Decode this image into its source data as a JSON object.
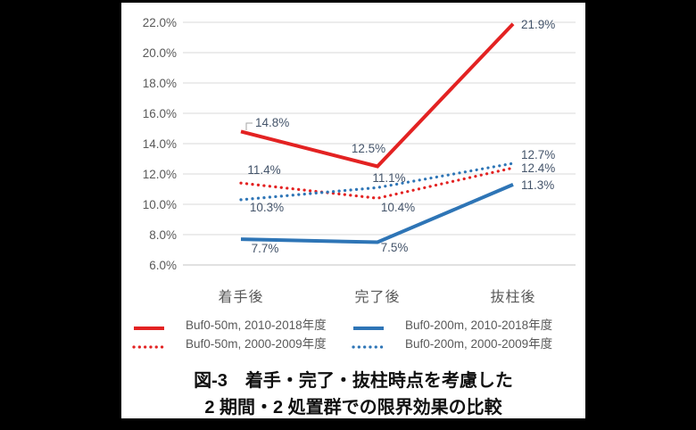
{
  "figure": {
    "caption_line1": "図-3　着手・完了・抜柱時点を考慮した",
    "caption_line2": "2 期間・2 処置群での限界効果の比較"
  },
  "chart_data": {
    "type": "line",
    "categories": [
      "着手後",
      "完了後",
      "抜柱後"
    ],
    "series": [
      {
        "name": "Buf0-50m, 2010-2018年度",
        "color": "#e32222",
        "style": "solid",
        "values": [
          14.8,
          12.5,
          21.9
        ],
        "labels": [
          "14.8%",
          "12.5%",
          "21.9%"
        ]
      },
      {
        "name": "Buf0-50m, 2000-2009年度",
        "color": "#e32222",
        "style": "dotted",
        "values": [
          11.4,
          10.4,
          12.4
        ],
        "labels": [
          "11.4%",
          "10.4%",
          "12.4%"
        ]
      },
      {
        "name": "Buf0-200m, 2010-2018年度",
        "color": "#2e75b6",
        "style": "solid",
        "values": [
          7.7,
          7.5,
          11.3
        ],
        "labels": [
          "7.7%",
          "7.5%",
          "11.3%"
        ]
      },
      {
        "name": "Buf0-200m, 2000-2009年度",
        "color": "#2e75b6",
        "style": "dotted",
        "values": [
          10.3,
          11.1,
          12.7
        ],
        "labels": [
          "10.3%",
          "11.1%",
          "12.7%"
        ]
      }
    ],
    "y_axis": {
      "min": 6.0,
      "max": 22.0,
      "step": 2.0,
      "tick_labels": [
        "6.0%",
        "8.0%",
        "10.0%",
        "12.0%",
        "14.0%",
        "16.0%",
        "18.0%",
        "20.0%",
        "22.0%"
      ]
    },
    "grid": true,
    "legend_position": "bottom",
    "legend_order_rows": [
      [
        "Buf0-50m, 2010-2018年度",
        "Buf0-200m, 2010-2018年度"
      ],
      [
        "Buf0-50m, 2000-2009年度",
        "Buf0-200m, 2000-2009年度"
      ]
    ]
  },
  "colors": {
    "red_series": "#e32222",
    "blue_series": "#2e75b6",
    "gridline": "#d9d9d9",
    "axis_line": "#c3c3c3",
    "tick_text": "#595959",
    "data_label_text": "#44546a",
    "background": "#000000",
    "panel": "#ffffff"
  }
}
